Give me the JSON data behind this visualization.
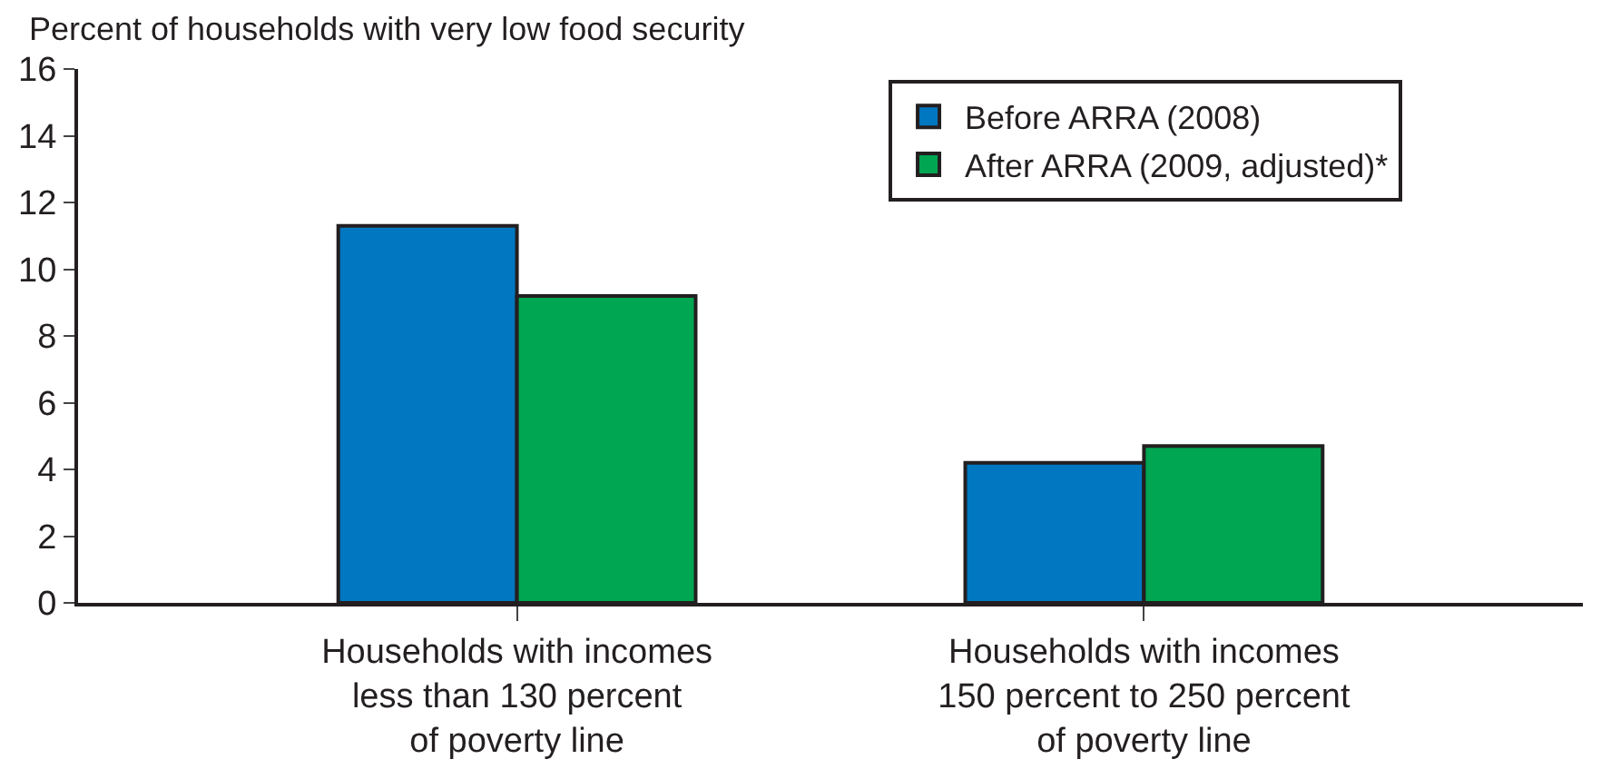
{
  "chart_data": {
    "type": "bar",
    "ylabel": "Percent of households with very low food security",
    "categories": [
      "Households with incomes\nless than 130 percent\nof poverty line",
      "Households with incomes\n150 percent to 250 percent\nof poverty line"
    ],
    "series": [
      {
        "name": "Before ARRA (2008)",
        "color": "#0077c0",
        "values": [
          11.3,
          4.2
        ]
      },
      {
        "name": "After ARRA (2009, adjusted)*",
        "color": "#00a651",
        "values": [
          9.2,
          4.7
        ]
      }
    ],
    "ylim": [
      0,
      16
    ],
    "yticks": [
      0,
      2,
      4,
      6,
      8,
      10,
      12,
      14,
      16
    ],
    "legend": "top right"
  }
}
